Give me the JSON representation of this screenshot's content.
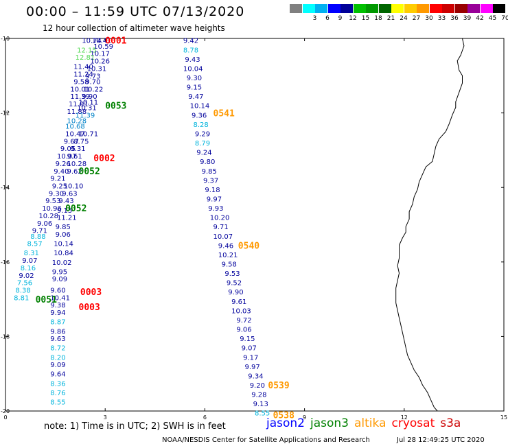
{
  "header": {
    "title": "00:00 – 11:59 UTC 07/13/2020",
    "subtitle": "12 hour collection of altimeter wave heights"
  },
  "legend": {
    "unit": "(ft)",
    "swatches": [
      {
        "color": "#808080",
        "label": ""
      },
      {
        "color": "#00ffff",
        "label": "3"
      },
      {
        "color": "#00b0f0",
        "label": "6"
      },
      {
        "color": "#0000ff",
        "label": "9"
      },
      {
        "color": "#000099",
        "label": "12"
      },
      {
        "color": "#00c000",
        "label": "15"
      },
      {
        "color": "#009900",
        "label": "18"
      },
      {
        "color": "#006600",
        "label": "21"
      },
      {
        "color": "#ffff00",
        "label": "24"
      },
      {
        "color": "#ffcc00",
        "label": "27"
      },
      {
        "color": "#ff9900",
        "label": "30"
      },
      {
        "color": "#ff0000",
        "label": "33"
      },
      {
        "color": "#cc0000",
        "label": "36"
      },
      {
        "color": "#990000",
        "label": "39"
      },
      {
        "color": "#990099",
        "label": "42"
      },
      {
        "color": "#ff00ff",
        "label": "45"
      },
      {
        "color": "#000000",
        "label": "70"
      }
    ]
  },
  "map": {
    "lon_range": [
      0,
      15
    ],
    "lat_range": [
      -20,
      -10
    ],
    "x_ticks": [
      "0",
      "3",
      "6",
      "9",
      "12",
      "15"
    ],
    "y_ticks": [
      "-10",
      "-12",
      "-14",
      "-16",
      "-18",
      "-20"
    ],
    "colors": {
      "c1": "#00009c",
      "c2": "#0082c8",
      "c3": "#00b4dc",
      "c4": "#50d850",
      "c5": "#1ec81e",
      "jason2": "#0000ff",
      "jason3": "#008000",
      "altika": "#ff9900",
      "cryosat": "#ff0000",
      "s3a": "#cc0000"
    },
    "track_a": [
      {
        "lon": 2.3,
        "lat": -10.05,
        "v": "10.74",
        "c": "c1"
      },
      {
        "lon": 2.6,
        "lat": -10.05,
        "v": "10.41",
        "c": "c1"
      },
      {
        "lon": 2.65,
        "lat": -10.2,
        "v": "10.59",
        "c": "c1"
      },
      {
        "lon": 2.15,
        "lat": -10.3,
        "v": "12.15",
        "c": "c4"
      },
      {
        "lon": 2.55,
        "lat": -10.4,
        "v": "10.17",
        "c": "c1"
      },
      {
        "lon": 2.1,
        "lat": -10.5,
        "v": "12.81",
        "c": "c4"
      },
      {
        "lon": 2.55,
        "lat": -10.6,
        "v": "10.26",
        "c": "c1"
      },
      {
        "lon": 2.05,
        "lat": -10.75,
        "v": "11.40",
        "c": "c1"
      },
      {
        "lon": 2.45,
        "lat": -10.8,
        "v": "10.31",
        "c": "c1"
      },
      {
        "lon": 2.05,
        "lat": -10.95,
        "v": "11.24",
        "c": "c1"
      },
      {
        "lon": 2.4,
        "lat": -11.0,
        "v": "9.73",
        "c": "c1"
      },
      {
        "lon": 2.05,
        "lat": -11.15,
        "v": "9.58",
        "c": "c1"
      },
      {
        "lon": 2.4,
        "lat": -11.15,
        "v": "9.70",
        "c": "c1"
      },
      {
        "lon": 1.95,
        "lat": -11.35,
        "v": "10.01",
        "c": "c1"
      },
      {
        "lon": 2.35,
        "lat": -11.35,
        "v": "10.22",
        "c": "c1"
      },
      {
        "lon": 1.95,
        "lat": -11.55,
        "v": "11.39",
        "c": "c1"
      },
      {
        "lon": 2.3,
        "lat": -11.55,
        "v": "9.90",
        "c": "c1"
      },
      {
        "lon": 2.2,
        "lat": -11.7,
        "v": "10.11",
        "c": "c1"
      },
      {
        "lon": 1.9,
        "lat": -11.75,
        "v": "11.01",
        "c": "c1"
      },
      {
        "lon": 2.15,
        "lat": -11.85,
        "v": "10.31",
        "c": "c1"
      },
      {
        "lon": 1.85,
        "lat": -11.95,
        "v": "11.88",
        "c": "c1"
      },
      {
        "lon": 2.1,
        "lat": -12.05,
        "v": "11.39",
        "c": "c2"
      },
      {
        "lon": 1.85,
        "lat": -12.2,
        "v": "10.28",
        "c": "c2"
      },
      {
        "lon": 1.8,
        "lat": -12.35,
        "v": "10.68",
        "c": "c2"
      },
      {
        "lon": 1.8,
        "lat": -12.55,
        "v": "10.47",
        "c": "c1"
      },
      {
        "lon": 2.2,
        "lat": -12.55,
        "v": "10.71",
        "c": "c1"
      },
      {
        "lon": 1.75,
        "lat": -12.75,
        "v": "9.67",
        "c": "c1"
      },
      {
        "lon": 2.05,
        "lat": -12.75,
        "v": "8.75",
        "c": "c1"
      },
      {
        "lon": 1.65,
        "lat": -12.95,
        "v": "9.05",
        "c": "c1"
      },
      {
        "lon": 1.95,
        "lat": -12.95,
        "v": "9.31",
        "c": "c1"
      },
      {
        "lon": 1.55,
        "lat": -13.15,
        "v": "10.07",
        "c": "c1"
      },
      {
        "lon": 1.85,
        "lat": -13.15,
        "v": "9.61",
        "c": "c1"
      },
      {
        "lon": 1.5,
        "lat": -13.35,
        "v": "9.26",
        "c": "c1"
      },
      {
        "lon": 1.85,
        "lat": -13.35,
        "v": "10.28",
        "c": "c1"
      },
      {
        "lon": 1.45,
        "lat": -13.55,
        "v": "9.40",
        "c": "c1"
      },
      {
        "lon": 1.85,
        "lat": -13.55,
        "v": "9.62",
        "c": "c1"
      },
      {
        "lon": 1.35,
        "lat": -13.75,
        "v": "9.21",
        "c": "c1"
      },
      {
        "lon": 1.4,
        "lat": -13.95,
        "v": "9.25",
        "c": "c1"
      },
      {
        "lon": 1.75,
        "lat": -13.95,
        "v": "10.10",
        "c": "c1"
      },
      {
        "lon": 1.3,
        "lat": -14.15,
        "v": "9.30",
        "c": "c1"
      },
      {
        "lon": 1.7,
        "lat": -14.15,
        "v": "9.63",
        "c": "c1"
      },
      {
        "lon": 1.2,
        "lat": -14.35,
        "v": "9.53",
        "c": "c1"
      },
      {
        "lon": 1.6,
        "lat": -14.35,
        "v": "9.43",
        "c": "c1"
      },
      {
        "lon": 1.1,
        "lat": -14.55,
        "v": "10.96",
        "c": "c1"
      },
      {
        "lon": 1.55,
        "lat": -14.6,
        "v": "9.15",
        "c": "c1"
      },
      {
        "lon": 1.0,
        "lat": -14.75,
        "v": "10.28",
        "c": "c1"
      },
      {
        "lon": 1.55,
        "lat": -14.8,
        "v": "11.21",
        "c": "c1"
      },
      {
        "lon": 0.95,
        "lat": -14.95,
        "v": "9.06",
        "c": "c1"
      },
      {
        "lon": 1.5,
        "lat": -15.05,
        "v": "9.85",
        "c": "c1"
      },
      {
        "lon": 0.8,
        "lat": -15.15,
        "v": "9.71",
        "c": "c1"
      },
      {
        "lon": 1.5,
        "lat": -15.25,
        "v": "9.06",
        "c": "c1"
      },
      {
        "lon": 0.75,
        "lat": -15.3,
        "v": "8.88",
        "c": "c3"
      },
      {
        "lon": 0.65,
        "lat": -15.5,
        "v": "8.57",
        "c": "c3"
      },
      {
        "lon": 1.45,
        "lat": -15.5,
        "v": "10.14",
        "c": "c1"
      },
      {
        "lon": 0.55,
        "lat": -15.75,
        "v": "8.31",
        "c": "c3"
      },
      {
        "lon": 1.45,
        "lat": -15.75,
        "v": "10.84",
        "c": "c1"
      },
      {
        "lon": 0.5,
        "lat": -15.95,
        "v": "9.07",
        "c": "c1"
      },
      {
        "lon": 1.4,
        "lat": -16.0,
        "v": "10.02",
        "c": "c1"
      },
      {
        "lon": 0.45,
        "lat": -16.15,
        "v": "8.16",
        "c": "c3"
      },
      {
        "lon": 0.4,
        "lat": -16.35,
        "v": "9.02",
        "c": "c1"
      },
      {
        "lon": 1.4,
        "lat": -16.25,
        "v": "9.95",
        "c": "c1"
      },
      {
        "lon": 0.35,
        "lat": -16.55,
        "v": "7.56",
        "c": "c3"
      },
      {
        "lon": 1.4,
        "lat": -16.45,
        "v": "9.09",
        "c": "c1"
      },
      {
        "lon": 0.3,
        "lat": -16.75,
        "v": "8.38",
        "c": "c3"
      },
      {
        "lon": 1.35,
        "lat": -16.75,
        "v": "9.60",
        "c": "c1"
      },
      {
        "lon": 0.25,
        "lat": -16.95,
        "v": "8.81",
        "c": "c3"
      },
      {
        "lon": 1.35,
        "lat": -16.95,
        "v": "10.41",
        "c": "c1"
      },
      {
        "lon": 1.35,
        "lat": -17.15,
        "v": "9.38",
        "c": "c1"
      },
      {
        "lon": 1.35,
        "lat": -17.35,
        "v": "9.94",
        "c": "c1"
      },
      {
        "lon": 1.35,
        "lat": -17.6,
        "v": "8.87",
        "c": "c3"
      },
      {
        "lon": 1.35,
        "lat": -17.85,
        "v": "9.86",
        "c": "c1"
      },
      {
        "lon": 1.35,
        "lat": -18.05,
        "v": "9.63",
        "c": "c1"
      },
      {
        "lon": 1.35,
        "lat": -18.3,
        "v": "8.72",
        "c": "c3"
      },
      {
        "lon": 1.35,
        "lat": -18.55,
        "v": "8.20",
        "c": "c3"
      },
      {
        "lon": 1.35,
        "lat": -18.75,
        "v": "9.09",
        "c": "c1"
      },
      {
        "lon": 1.35,
        "lat": -19.0,
        "v": "9.64",
        "c": "c1"
      },
      {
        "lon": 1.35,
        "lat": -19.25,
        "v": "8.36",
        "c": "c3"
      },
      {
        "lon": 1.35,
        "lat": -19.5,
        "v": "8.76",
        "c": "c3"
      },
      {
        "lon": 1.35,
        "lat": -19.75,
        "v": "8.55",
        "c": "c3"
      }
    ],
    "track_b": [
      {
        "lon": 5.35,
        "lat": -10.05,
        "v": "9.42",
        "c": "c1"
      },
      {
        "lon": 5.35,
        "lat": -10.3,
        "v": "8.78",
        "c": "c3"
      },
      {
        "lon": 5.4,
        "lat": -10.55,
        "v": "9.43",
        "c": "c1"
      },
      {
        "lon": 5.35,
        "lat": -10.8,
        "v": "10.04",
        "c": "c1"
      },
      {
        "lon": 5.45,
        "lat": -11.05,
        "v": "9.30",
        "c": "c1"
      },
      {
        "lon": 5.45,
        "lat": -11.3,
        "v": "9.15",
        "c": "c1"
      },
      {
        "lon": 5.5,
        "lat": -11.55,
        "v": "9.47",
        "c": "c1"
      },
      {
        "lon": 5.55,
        "lat": -11.8,
        "v": "10.14",
        "c": "c1"
      },
      {
        "lon": 5.6,
        "lat": -12.05,
        "v": "9.36",
        "c": "c1"
      },
      {
        "lon": 5.65,
        "lat": -12.3,
        "v": "8.28",
        "c": "c3"
      },
      {
        "lon": 5.7,
        "lat": -12.55,
        "v": "9.29",
        "c": "c1"
      },
      {
        "lon": 5.7,
        "lat": -12.8,
        "v": "8.79",
        "c": "c3"
      },
      {
        "lon": 5.75,
        "lat": -13.05,
        "v": "9.24",
        "c": "c1"
      },
      {
        "lon": 5.85,
        "lat": -13.3,
        "v": "9.80",
        "c": "c1"
      },
      {
        "lon": 5.9,
        "lat": -13.55,
        "v": "9.85",
        "c": "c1"
      },
      {
        "lon": 5.95,
        "lat": -13.8,
        "v": "9.37",
        "c": "c1"
      },
      {
        "lon": 6.0,
        "lat": -14.05,
        "v": "9.18",
        "c": "c1"
      },
      {
        "lon": 6.05,
        "lat": -14.3,
        "v": "9.97",
        "c": "c1"
      },
      {
        "lon": 6.1,
        "lat": -14.55,
        "v": "9.93",
        "c": "c1"
      },
      {
        "lon": 6.15,
        "lat": -14.8,
        "v": "10.20",
        "c": "c1"
      },
      {
        "lon": 6.25,
        "lat": -15.05,
        "v": "9.71",
        "c": "c1"
      },
      {
        "lon": 6.25,
        "lat": -15.3,
        "v": "10.07",
        "c": "c1"
      },
      {
        "lon": 6.4,
        "lat": -15.55,
        "v": "9.46",
        "c": "c1"
      },
      {
        "lon": 6.4,
        "lat": -15.8,
        "v": "10.21",
        "c": "c1"
      },
      {
        "lon": 6.5,
        "lat": -16.05,
        "v": "9.58",
        "c": "c1"
      },
      {
        "lon": 6.6,
        "lat": -16.3,
        "v": "9.53",
        "c": "c1"
      },
      {
        "lon": 6.65,
        "lat": -16.55,
        "v": "9.52",
        "c": "c1"
      },
      {
        "lon": 6.7,
        "lat": -16.8,
        "v": "9.90",
        "c": "c1"
      },
      {
        "lon": 6.8,
        "lat": -17.05,
        "v": "9.61",
        "c": "c1"
      },
      {
        "lon": 6.8,
        "lat": -17.3,
        "v": "10.03",
        "c": "c1"
      },
      {
        "lon": 6.95,
        "lat": -17.55,
        "v": "9.72",
        "c": "c1"
      },
      {
        "lon": 6.95,
        "lat": -17.8,
        "v": "9.06",
        "c": "c1"
      },
      {
        "lon": 7.05,
        "lat": -18.05,
        "v": "9.15",
        "c": "c1"
      },
      {
        "lon": 7.1,
        "lat": -18.3,
        "v": "9.07",
        "c": "c1"
      },
      {
        "lon": 7.15,
        "lat": -18.55,
        "v": "9.17",
        "c": "c1"
      },
      {
        "lon": 7.2,
        "lat": -18.8,
        "v": "9.97",
        "c": "c1"
      },
      {
        "lon": 7.3,
        "lat": -19.05,
        "v": "9.34",
        "c": "c1"
      },
      {
        "lon": 7.35,
        "lat": -19.3,
        "v": "9.20",
        "c": "c1"
      },
      {
        "lon": 7.4,
        "lat": -19.55,
        "v": "9.28",
        "c": "c1"
      },
      {
        "lon": 7.45,
        "lat": -19.8,
        "v": "9.13",
        "c": "c1"
      },
      {
        "lon": 7.5,
        "lat": -20.05,
        "v": "8.55",
        "c": "c3"
      }
    ],
    "pass_labels": [
      {
        "lon": 3.0,
        "lat": -10.05,
        "t": "0001",
        "c": "cryosat"
      },
      {
        "lon": 3.0,
        "lat": -11.8,
        "t": "0053",
        "c": "jason3"
      },
      {
        "lon": 6.25,
        "lat": -12.0,
        "t": "0541",
        "c": "altika"
      },
      {
        "lon": 2.65,
        "lat": -13.2,
        "t": "0002",
        "c": "cryosat"
      },
      {
        "lon": 2.2,
        "lat": -13.55,
        "t": "0052",
        "c": "jason3"
      },
      {
        "lon": 1.8,
        "lat": -14.55,
        "t": "0052",
        "c": "jason3"
      },
      {
        "lon": 7.0,
        "lat": -15.55,
        "t": "0540",
        "c": "altika"
      },
      {
        "lon": 2.25,
        "lat": -16.8,
        "t": "0003",
        "c": "cryosat"
      },
      {
        "lon": 2.2,
        "lat": -17.2,
        "t": "0003",
        "c": "cryosat"
      },
      {
        "lon": 0.9,
        "lat": -17.0,
        "t": "0051",
        "c": "jason3"
      },
      {
        "lon": 7.9,
        "lat": -19.3,
        "t": "0539",
        "c": "altika"
      },
      {
        "lon": 8.05,
        "lat": -20.1,
        "t": "0538",
        "c": "altika"
      }
    ],
    "coastline": [
      [
        13.75,
        -10.0
      ],
      [
        13.8,
        -10.2
      ],
      [
        13.7,
        -10.45
      ],
      [
        13.6,
        -10.6
      ],
      [
        13.65,
        -10.85
      ],
      [
        13.75,
        -11.0
      ],
      [
        13.75,
        -11.2
      ],
      [
        13.65,
        -11.45
      ],
      [
        13.55,
        -11.7
      ],
      [
        13.55,
        -11.85
      ],
      [
        13.45,
        -12.05
      ],
      [
        13.35,
        -12.3
      ],
      [
        13.25,
        -12.5
      ],
      [
        13.05,
        -12.7
      ],
      [
        12.95,
        -12.9
      ],
      [
        12.9,
        -13.1
      ],
      [
        12.85,
        -13.3
      ],
      [
        12.65,
        -13.45
      ],
      [
        12.55,
        -13.65
      ],
      [
        12.45,
        -13.85
      ],
      [
        12.4,
        -14.05
      ],
      [
        12.3,
        -14.25
      ],
      [
        12.25,
        -14.45
      ],
      [
        12.15,
        -14.65
      ],
      [
        12.15,
        -14.85
      ],
      [
        12.05,
        -15.05
      ],
      [
        12.05,
        -15.2
      ],
      [
        11.95,
        -15.35
      ],
      [
        11.85,
        -15.55
      ],
      [
        11.85,
        -15.75
      ],
      [
        11.85,
        -15.9
      ],
      [
        11.8,
        -16.1
      ],
      [
        11.85,
        -16.3
      ],
      [
        11.8,
        -16.5
      ],
      [
        11.75,
        -16.7
      ],
      [
        11.75,
        -16.9
      ],
      [
        11.75,
        -17.1
      ],
      [
        11.8,
        -17.3
      ],
      [
        11.85,
        -17.5
      ],
      [
        11.9,
        -17.7
      ],
      [
        11.95,
        -17.9
      ],
      [
        12.0,
        -18.1
      ],
      [
        12.05,
        -18.3
      ],
      [
        12.1,
        -18.5
      ],
      [
        12.2,
        -18.7
      ],
      [
        12.3,
        -18.9
      ],
      [
        12.45,
        -19.1
      ],
      [
        12.55,
        -19.3
      ],
      [
        12.7,
        -19.5
      ],
      [
        12.8,
        -19.7
      ],
      [
        12.9,
        -19.9
      ],
      [
        13.0,
        -20.0
      ]
    ]
  },
  "footer": {
    "note": "note:  1) Time is in UTC;  2) SWH is in feet",
    "satellites": [
      {
        "name": "jason2",
        "c": "jason2"
      },
      {
        "name": "jason3",
        "c": "jason3"
      },
      {
        "name": "altika",
        "c": "altika"
      },
      {
        "name": "cryosat",
        "c": "cryosat"
      },
      {
        "name": "s3a",
        "c": "s3a"
      }
    ],
    "credit": "NOAA/NESDIS Center for Satellite Applications and Research",
    "timestamp": "Jul 28 12:49:25 UTC 2020"
  }
}
